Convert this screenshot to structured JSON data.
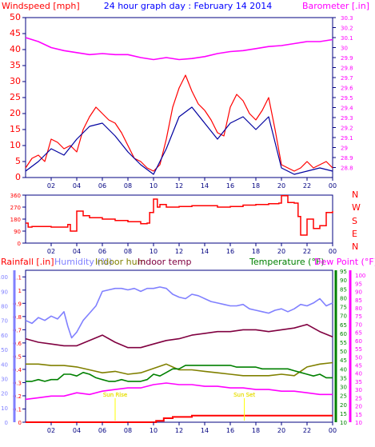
{
  "header": {
    "left_label": "Windspeed [mph]",
    "center_title": "24 hour graph day : February 14 2014",
    "right_label": "Barometer [.in]"
  },
  "direction_labels": [
    "N",
    "W",
    "S",
    "E",
    "N"
  ],
  "bottom_labels": {
    "rainfall": "Rainfall [.in]",
    "humidity": "Humidity (%)",
    "indoor_hum": "Indoor hum",
    "indoor_temp": "Indoor temp",
    "temperature": "Temperature (°F)",
    "dew_point": "Dew Point (°F)"
  },
  "annotations": {
    "sunrise": "Sun Rise",
    "sunset": "Sun Set"
  },
  "x_ticks": [
    "02",
    "04",
    "06",
    "08",
    "10",
    "12",
    "14",
    "16",
    "18",
    "20",
    "22",
    "00"
  ],
  "colors": {
    "wind": "#ff0000",
    "wind_avg": "#0000a0",
    "barometer": "#ff00ff",
    "direction": "#ff0000",
    "rain": "#ff0000",
    "humidity": "#8080ff",
    "indoor_hum": "#808000",
    "indoor_temp": "#800040",
    "temperature": "#008000",
    "dew_point": "#ff00ff",
    "title": "#0000ff",
    "axis": "#000080",
    "sun": "#ffff00"
  },
  "chart_data": [
    {
      "type": "line",
      "title": "24 hour graph day : February 14 2014",
      "ylabel": "Windspeed [mph]",
      "y2label": "Barometer [.in]",
      "ylim": [
        0,
        50
      ],
      "y2lim": [
        28.7,
        30.3
      ],
      "y_ticks": [
        "0",
        "5",
        "10",
        "15",
        "20",
        "25",
        "30",
        "35",
        "40",
        "45",
        "50"
      ],
      "y2_ticks": [
        "28.8",
        "28.9",
        "29",
        "29.1",
        "29.2",
        "29.3",
        "29.4",
        "29.5",
        "29.6",
        "29.7",
        "29.8",
        "29.9",
        "30",
        "30.1",
        "30.2",
        "30.3"
      ],
      "xlim": [
        0,
        24
      ],
      "series": [
        {
          "name": "Windspeed",
          "axis": "left",
          "x": [
            0,
            0.5,
            1,
            1.5,
            2,
            2.5,
            3,
            3.5,
            4,
            4.5,
            5,
            5.5,
            6,
            6.5,
            7,
            7.5,
            8,
            8.5,
            9,
            9.5,
            10,
            10.5,
            11,
            11.5,
            12,
            12.5,
            13,
            13.5,
            14,
            14.5,
            15,
            15.5,
            16,
            16.5,
            17,
            17.5,
            18,
            18.5,
            19,
            19.5,
            20,
            20.5,
            21,
            21.5,
            22,
            22.5,
            23,
            23.5,
            24
          ],
          "values": [
            3,
            6,
            7,
            5,
            12,
            11,
            9,
            10,
            8,
            15,
            19,
            22,
            20,
            18,
            17,
            14,
            10,
            6,
            5,
            3,
            2,
            4,
            12,
            22,
            28,
            32,
            27,
            23,
            21,
            18,
            14,
            13,
            22,
            26,
            24,
            20,
            18,
            21,
            25,
            15,
            4,
            3,
            2,
            3,
            5,
            3,
            4,
            5,
            3
          ]
        },
        {
          "name": "Avg windspeed",
          "axis": "left",
          "x": [
            0,
            1,
            2,
            3,
            4,
            5,
            6,
            7,
            8,
            9,
            10,
            11,
            12,
            13,
            14,
            15,
            16,
            17,
            18,
            19,
            20,
            21,
            22,
            23,
            24
          ],
          "values": [
            2,
            5,
            9,
            7,
            12,
            16,
            17,
            13,
            8,
            4,
            1,
            9,
            19,
            22,
            17,
            12,
            17,
            19,
            15,
            19,
            3,
            1,
            2,
            3,
            2
          ]
        },
        {
          "name": "Barometer",
          "axis": "right",
          "x": [
            0,
            1,
            2,
            3,
            4,
            5,
            6,
            7,
            8,
            9,
            10,
            11,
            12,
            13,
            14,
            15,
            16,
            17,
            18,
            19,
            20,
            21,
            22,
            23,
            24
          ],
          "values": [
            30.1,
            30.06,
            30.0,
            29.97,
            29.95,
            29.93,
            29.94,
            29.93,
            29.93,
            29.9,
            29.88,
            29.9,
            29.88,
            29.89,
            29.91,
            29.94,
            29.96,
            29.97,
            29.99,
            30.01,
            30.02,
            30.04,
            30.06,
            30.06,
            30.08
          ]
        }
      ]
    },
    {
      "type": "line",
      "ylabel": "",
      "ylim": [
        0,
        360
      ],
      "y_ticks": [
        "0",
        "90",
        "180",
        "270",
        "360"
      ],
      "xlim": [
        0,
        24
      ],
      "series": [
        {
          "name": "Wind direction",
          "x": [
            0,
            0.2,
            0.5,
            1,
            2,
            3,
            3.3,
            3.5,
            4,
            4.5,
            5,
            6,
            7,
            8,
            9,
            9.5,
            9.7,
            10,
            10.3,
            10.5,
            11,
            12,
            13,
            14,
            15,
            16,
            17,
            18,
            19,
            19.8,
            20,
            20.5,
            21,
            21.3,
            21.5,
            22,
            22.5,
            23,
            23.5,
            24
          ],
          "values": [
            150,
            120,
            125,
            125,
            120,
            120,
            140,
            90,
            240,
            205,
            190,
            180,
            170,
            160,
            145,
            150,
            230,
            330,
            270,
            290,
            270,
            275,
            280,
            280,
            270,
            275,
            285,
            290,
            295,
            300,
            355,
            305,
            300,
            200,
            60,
            180,
            110,
            130,
            230,
            240
          ]
        }
      ]
    },
    {
      "type": "line",
      "y_left_ticks": [
        "0",
        "0.1",
        "0.2",
        "0.3",
        "0.4",
        "0.5",
        "0.6",
        "0.7",
        "0.8",
        "0.9",
        "1",
        "1.1"
      ],
      "y_hum_ticks": [
        "0",
        "10",
        "20",
        "30",
        "40",
        "50",
        "60",
        "70",
        "80",
        "90",
        "100"
      ],
      "y_temp_ticks": [
        "10",
        "15",
        "20",
        "25",
        "30",
        "35",
        "40",
        "45",
        "50",
        "55",
        "60",
        "65",
        "70",
        "75",
        "80",
        "85",
        "90",
        "95"
      ],
      "y_dew_ticks": [
        "10",
        "15",
        "20",
        "25",
        "30",
        "35",
        "40",
        "45",
        "50",
        "55",
        "60",
        "65",
        "70",
        "75",
        "80",
        "85",
        "90",
        "95",
        "100"
      ],
      "xlim": [
        0,
        24
      ],
      "sunrise_x": 7.0,
      "sunset_x": 17.1,
      "series": [
        {
          "name": "Rainfall",
          "unit": "in",
          "x": [
            0,
            9,
            9.8,
            10.2,
            10.8,
            11.5,
            12.5,
            13,
            15,
            20,
            22,
            23.5,
            24
          ],
          "values": [
            0,
            0,
            0,
            0.01,
            0.03,
            0.04,
            0.04,
            0.05,
            0.05,
            0.05,
            0.05,
            0.05,
            0.05
          ]
        },
        {
          "name": "Humidity",
          "unit": "%",
          "x": [
            0,
            0.5,
            1,
            1.5,
            2,
            2.5,
            3,
            3.3,
            3.6,
            4,
            4.5,
            5,
            5.5,
            6,
            6.5,
            7,
            7.5,
            8,
            8.5,
            9,
            9.5,
            10,
            10.5,
            11,
            11.5,
            12,
            12.5,
            13,
            13.5,
            14,
            14.5,
            15,
            15.5,
            16,
            16.5,
            17,
            17.5,
            18,
            18.5,
            19,
            19.5,
            20,
            20.5,
            21,
            21.5,
            22,
            22.5,
            23,
            23.5,
            24
          ],
          "values": [
            70,
            68,
            72,
            70,
            73,
            71,
            76,
            66,
            58,
            62,
            70,
            75,
            80,
            90,
            91,
            92,
            92,
            91,
            92,
            90,
            92,
            92,
            93,
            92,
            88,
            86,
            85,
            88,
            87,
            85,
            83,
            82,
            81,
            80,
            80,
            81,
            78,
            77,
            76,
            75,
            77,
            78,
            76,
            78,
            81,
            80,
            82,
            85,
            80,
            82
          ]
        },
        {
          "name": "Indoor hum",
          "unit": "%",
          "x": [
            0,
            1,
            2,
            3,
            4,
            5,
            6,
            7,
            8,
            9,
            10,
            11,
            12,
            13,
            14,
            15,
            16,
            17,
            18,
            19,
            20,
            21,
            22,
            23,
            24
          ],
          "values": [
            40,
            40,
            39,
            39,
            38,
            36,
            34,
            35,
            33,
            34,
            37,
            40,
            36,
            36,
            35,
            34,
            33,
            32,
            32,
            32,
            33,
            32,
            38,
            40,
            41
          ]
        },
        {
          "name": "Indoor temp",
          "unit": "°F",
          "x": [
            0,
            1,
            2,
            3,
            4,
            5,
            6,
            7,
            8,
            9,
            10,
            11,
            12,
            13,
            14,
            15,
            16,
            17,
            18,
            19,
            20,
            21,
            22,
            23,
            24
          ],
          "values": [
            57,
            55,
            54,
            53,
            53,
            56,
            59,
            55,
            52,
            52,
            54,
            56,
            57,
            59,
            60,
            61,
            61,
            62,
            62,
            61,
            62,
            63,
            65,
            61,
            58
          ]
        },
        {
          "name": "Temperature",
          "unit": "°F",
          "x": [
            0,
            0.5,
            1,
            1.5,
            2,
            2.5,
            3,
            3.5,
            4,
            4.5,
            5,
            5.5,
            6,
            6.5,
            7,
            7.5,
            8,
            8.5,
            9,
            9.5,
            10,
            10.5,
            11,
            11.5,
            12,
            12.5,
            13,
            13.5,
            14,
            14.5,
            15,
            15.5,
            16,
            16.5,
            17,
            17.5,
            18,
            18.5,
            19,
            19.5,
            20,
            20.5,
            21,
            21.5,
            22,
            22.5,
            23,
            23.5,
            24
          ],
          "values": [
            33,
            33,
            34,
            33,
            34,
            34,
            37,
            37,
            36,
            38,
            37,
            35,
            34,
            33,
            33,
            34,
            33,
            33,
            33,
            34,
            37,
            36,
            38,
            40,
            40,
            42,
            42,
            42,
            42,
            42,
            42,
            42,
            42,
            41,
            41,
            41,
            41,
            40,
            40,
            40,
            40,
            40,
            39,
            38,
            37,
            36,
            37,
            35,
            35
          ]
        },
        {
          "name": "Dew Point",
          "unit": "°F",
          "x": [
            0,
            1,
            2,
            3,
            4,
            5,
            6,
            7,
            8,
            9,
            10,
            11,
            12,
            13,
            14,
            15,
            16,
            17,
            18,
            19,
            20,
            21,
            22,
            23,
            24
          ],
          "values": [
            24,
            25,
            26,
            26,
            28,
            27,
            29,
            30,
            31,
            31,
            33,
            34,
            33,
            33,
            32,
            32,
            31,
            31,
            30,
            30,
            29,
            29,
            28,
            27,
            27
          ]
        }
      ]
    }
  ]
}
